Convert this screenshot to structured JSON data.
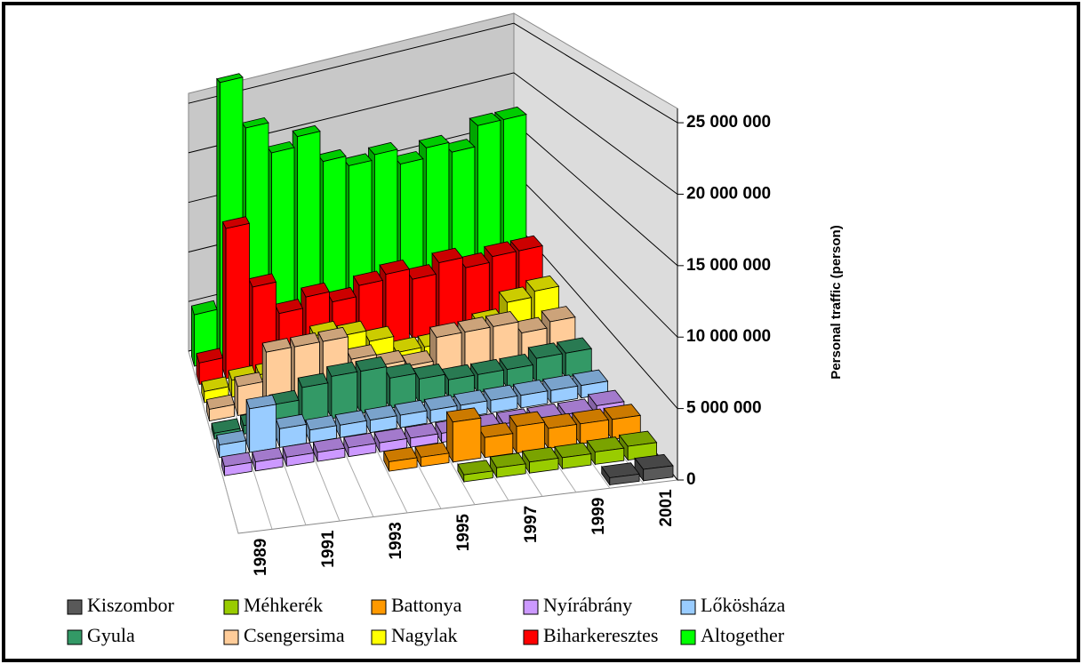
{
  "chart_data": {
    "type": "bar3d",
    "y_label": "Personal traffic (person)",
    "categories": [
      "1989",
      null,
      "1991",
      null,
      "1993",
      null,
      "1995",
      null,
      "1997",
      null,
      "1999",
      null,
      "2001"
    ],
    "ylim": [
      0,
      26000000
    ],
    "yticks": [
      0,
      {
        "value": 5000000,
        "label": "5 000 000"
      },
      {
        "value": 10000000,
        "label": "10 000 000"
      },
      {
        "value": 15000000,
        "label": "15 000 000"
      },
      {
        "value": 20000000,
        "label": "20 000 000"
      },
      {
        "value": 25000000,
        "label": "25 000 000"
      }
    ],
    "grid": true,
    "series": [
      {
        "name": "Kiszombor",
        "color": "#595959",
        "values": [
          null,
          null,
          null,
          null,
          null,
          null,
          null,
          null,
          null,
          null,
          null,
          500000,
          800000
        ]
      },
      {
        "name": "Méhkerék",
        "color": "#99cc00",
        "values": [
          null,
          null,
          null,
          null,
          null,
          null,
          null,
          500000,
          700000,
          800000,
          800000,
          900000,
          1000000
        ]
      },
      {
        "name": "Battonya",
        "color": "#ff9900",
        "values": [
          null,
          null,
          null,
          null,
          null,
          700000,
          700000,
          3000000,
          1500000,
          2000000,
          1500000,
          1500000,
          1500000
        ]
      },
      {
        "name": "Nyírábrány",
        "color": "#cc99ff",
        "values": [
          700000,
          700000,
          700000,
          700000,
          700000,
          700000,
          700000,
          700000,
          700000,
          700000,
          700000,
          700000,
          1000000
        ]
      },
      {
        "name": "Lőkösháza",
        "color": "#99ccff",
        "values": [
          1000000,
          3500000,
          1500000,
          1000000,
          1000000,
          1000000,
          1000000,
          1000000,
          1000000,
          1000000,
          1000000,
          1000000,
          1000000
        ]
      },
      {
        "name": "Gyula",
        "color": "#339966",
        "values": [
          500000,
          700000,
          2000000,
          3000000,
          3500000,
          3500000,
          2500000,
          2000000,
          1500000,
          1500000,
          1500000,
          2000000,
          2000000
        ]
      },
      {
        "name": "Csengersima",
        "color": "#ffcc99",
        "values": [
          1000000,
          2500000,
          5000000,
          5000000,
          5000000,
          3000000,
          2000000,
          1500000,
          3500000,
          3500000,
          3500000,
          2500000,
          3000000
        ]
      },
      {
        "name": "Nagylak",
        "color": "#ffff00",
        "values": [
          1000000,
          1500000,
          1500000,
          2500000,
          4000000,
          3500000,
          2500000,
          1000000,
          1000000,
          1000000,
          2000000,
          3500000,
          4000000
        ]
      },
      {
        "name": "Biharkeresztes",
        "color": "#ff0000",
        "values": [
          2000000,
          14000000,
          8000000,
          5000000,
          6000000,
          5000000,
          6000000,
          6500000,
          5500000,
          6500000,
          5500000,
          6000000,
          6000000
        ]
      },
      {
        "name": "Altogether",
        "color": "#00ff00",
        "values": [
          5000000,
          27000000,
          22000000,
          19000000,
          20000000,
          17000000,
          16000000,
          16500000,
          15000000,
          16000000,
          15000000,
          17000000,
          17000000
        ]
      }
    ]
  }
}
